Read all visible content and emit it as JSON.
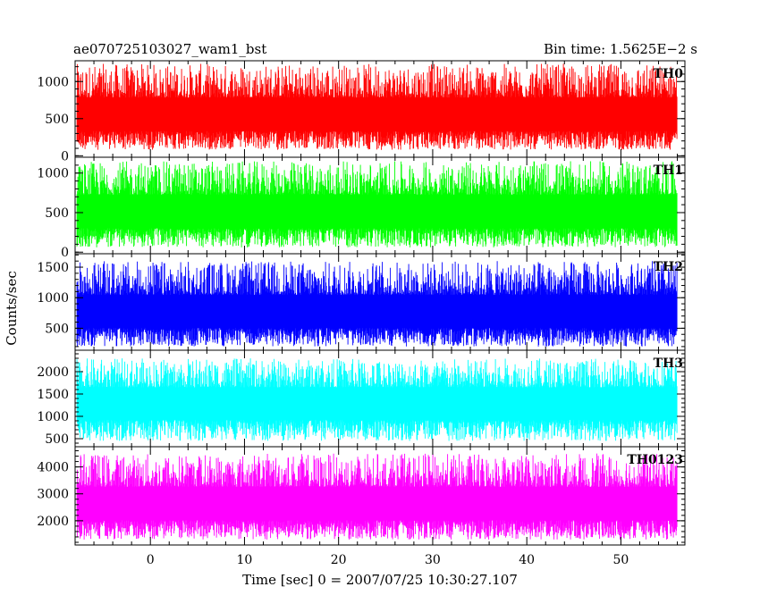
{
  "chart_data": {
    "type": "line",
    "title_left": "ae070725103027_wam1_bst",
    "title_right": "Bin time: 1.5625E−2 s",
    "xlabel": "Time [sec] 0 = 2007/07/25 10:30:27.107",
    "ylabel": "Counts/sec",
    "xlim": [
      -8.0,
      56.8
    ],
    "x_ticks": [
      0,
      10,
      20,
      30,
      40,
      50
    ],
    "data_x_range": [
      -7.8,
      56.0
    ],
    "grid": false,
    "panels": [
      {
        "name": "TH0",
        "color": "#ff0000",
        "ylim": [
          -20,
          1280
        ],
        "y_ticks": [
          0,
          500,
          1000
        ],
        "approx_baseline": 540,
        "approx_spread": [
          80,
          1240
        ]
      },
      {
        "name": "TH1",
        "color": "#00ff00",
        "ylim": [
          -20,
          1200
        ],
        "y_ticks": [
          0,
          500,
          1000
        ],
        "approx_baseline": 500,
        "approx_spread": [
          60,
          1150
        ]
      },
      {
        "name": "TH2",
        "color": "#0000ff",
        "ylim": [
          140,
          1720
        ],
        "y_ticks": [
          500,
          1000,
          1500
        ],
        "approx_baseline": 750,
        "approx_spread": [
          200,
          1600
        ]
      },
      {
        "name": "TH3",
        "color": "#00ffff",
        "ylim": [
          320,
          2480
        ],
        "y_ticks": [
          500,
          1000,
          1500,
          2000
        ],
        "approx_baseline": 1300,
        "approx_spread": [
          450,
          2300
        ]
      },
      {
        "name": "TH0123",
        "color": "#ff00ff",
        "ylim": [
          1100,
          4750
        ],
        "y_ticks": [
          2000,
          3000,
          4000
        ],
        "approx_baseline": 2600,
        "approx_spread": [
          1300,
          4500
        ]
      }
    ]
  }
}
